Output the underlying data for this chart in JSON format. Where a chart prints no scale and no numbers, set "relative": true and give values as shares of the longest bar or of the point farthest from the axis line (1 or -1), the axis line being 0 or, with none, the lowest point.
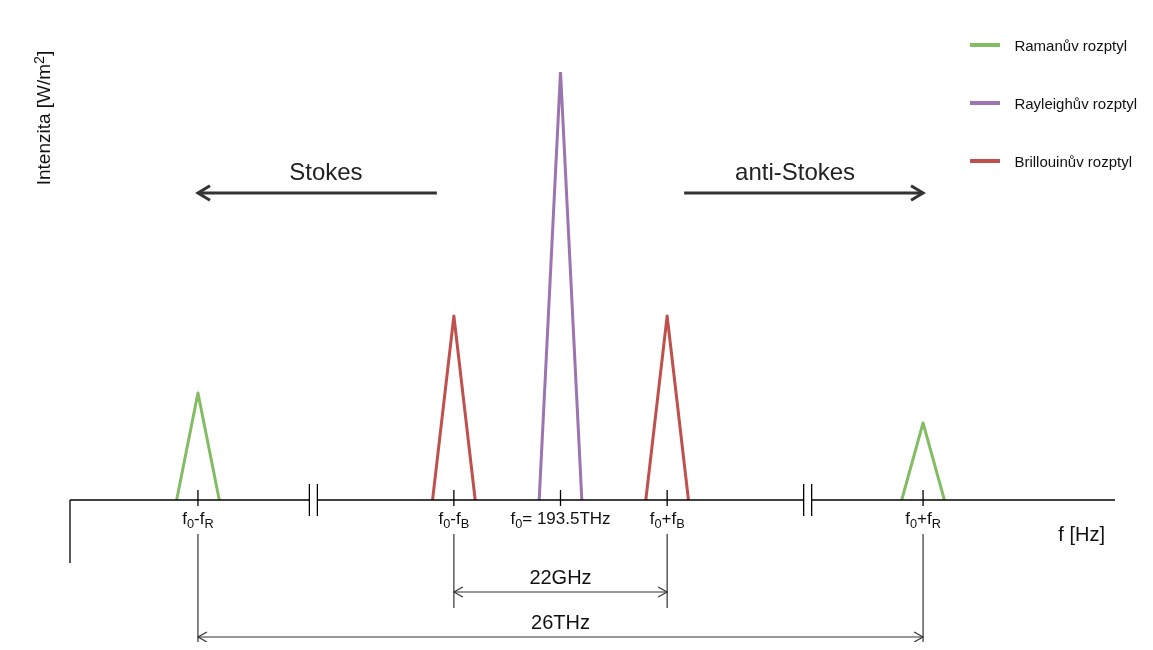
{
  "chart_data": {
    "type": "line",
    "relative": true,
    "xlabel": "f [Hz]",
    "ylabel": "Intenzita [W/m$^{2}$]",
    "categories": [
      null,
      null,
      null,
      null,
      null,
      null,
      "f$_{0}$-f$_{R}$",
      null,
      null,
      null,
      null,
      null,
      null,
      null,
      null,
      null,
      null,
      null,
      "f$_{0}$-f$_{B}$",
      null,
      null,
      null,
      null,
      "f$_{0}$= 193.5THz",
      null,
      null,
      null,
      null,
      "f$_{0}$+f$_{B}$",
      null,
      null,
      null,
      null,
      null,
      null,
      null,
      null,
      null,
      null,
      null,
      "f$_{0}$+f$_{R}$",
      null,
      null,
      null,
      null,
      null,
      null,
      null,
      null,
      null
    ],
    "series": [
      {
        "name": "Ramanův rozptyl",
        "color": "#82bd63",
        "values": [
          null,
          null,
          null,
          null,
          null,
          0,
          0.25,
          0,
          null,
          null,
          null,
          null,
          null,
          null,
          null,
          null,
          null,
          null,
          null,
          null,
          null,
          null,
          null,
          null,
          null,
          null,
          null,
          null,
          null,
          null,
          null,
          null,
          null,
          null,
          null,
          null,
          null,
          null,
          null,
          0,
          0.18,
          0,
          null,
          null,
          null,
          null,
          null,
          null,
          null,
          null
        ]
      },
      {
        "name": "Rayleighův rozptyl",
        "color": "#9b74b0",
        "values": [
          null,
          null,
          null,
          null,
          null,
          null,
          null,
          null,
          null,
          null,
          null,
          null,
          null,
          null,
          null,
          null,
          null,
          null,
          null,
          null,
          null,
          null,
          0,
          1,
          0,
          null,
          null,
          null,
          null,
          null,
          null,
          null,
          null,
          null,
          null,
          null,
          null,
          null,
          null,
          null,
          null,
          null,
          null,
          null,
          null,
          null,
          null,
          null,
          null,
          null
        ]
      },
      {
        "name": "Brillouinův rozptyl",
        "color": "#c0504d",
        "values": [
          null,
          null,
          null,
          null,
          null,
          null,
          null,
          null,
          null,
          null,
          null,
          null,
          null,
          null,
          null,
          null,
          null,
          0,
          0.43,
          0,
          null,
          null,
          null,
          null,
          null,
          null,
          null,
          0,
          0.43,
          0,
          null,
          null,
          null,
          null,
          null,
          null,
          null,
          null,
          null,
          null,
          null,
          null,
          null,
          null,
          null,
          null,
          null,
          null,
          null,
          null
        ]
      }
    ],
    "legend": "top right",
    "marker": "none",
    "line_style": "solid",
    "annotations": [
      "Stokes",
      "anti-Stokes",
      "22GHz",
      "26THz"
    ]
  }
}
